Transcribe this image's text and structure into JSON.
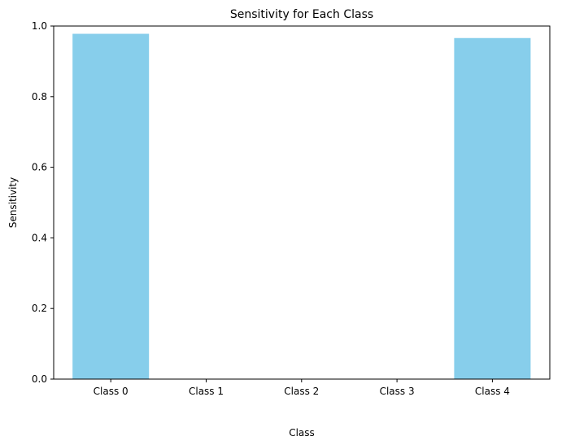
{
  "chart_data": {
    "type": "bar",
    "title": "Sensitivity for Each Class",
    "xlabel": "Class",
    "ylabel": "Sensitivity",
    "categories": [
      "Class 0",
      "Class 1",
      "Class 2",
      "Class 3",
      "Class 4"
    ],
    "values": [
      0.978,
      0.0,
      0.0,
      0.0,
      0.966
    ],
    "ylim": [
      0,
      1.0
    ],
    "yticks": [
      0.0,
      0.2,
      0.4,
      0.6,
      0.8,
      1.0
    ],
    "ytick_labels": [
      "0.0",
      "0.2",
      "0.4",
      "0.6",
      "0.8",
      "1.0"
    ],
    "bar_color": "#87CEEB",
    "grid": false,
    "legend": "none"
  }
}
